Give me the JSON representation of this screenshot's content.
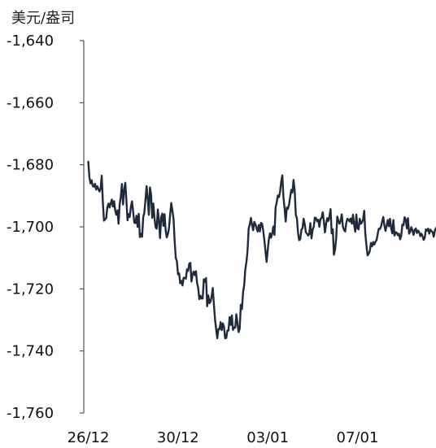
{
  "chart_data": {
    "type": "line",
    "ylabel": "美元/盎司",
    "ylim": [
      -1760,
      -1640
    ],
    "y_ticks": [
      -1640,
      -1660,
      -1680,
      -1700,
      -1720,
      -1740,
      -1760
    ],
    "y_tick_labels": [
      "-1,640",
      "-1,660",
      "-1,680",
      "-1,700",
      "-1,720",
      "-1,740",
      "-1,760"
    ],
    "x_tick_labels": [
      "26/12",
      "30/12",
      "03/01",
      "07/01"
    ],
    "x_tick_positions": [
      0,
      4,
      8,
      12
    ],
    "xlim": [
      -0.2,
      15.5
    ],
    "grid": false,
    "line_color": "#1f2a3c",
    "series": [
      {
        "x": [
          0.0,
          0.05,
          0.1,
          0.15,
          0.2,
          0.25,
          0.3,
          0.35,
          0.4,
          0.45,
          0.5,
          0.55,
          0.6,
          0.65,
          0.7,
          0.75,
          0.8,
          0.85,
          0.9,
          0.95,
          1.0,
          1.05,
          1.1,
          1.15,
          1.2,
          1.25,
          1.3,
          1.35,
          1.4,
          1.45,
          1.5,
          1.55,
          1.6,
          1.65,
          1.7,
          1.75,
          1.8,
          1.85,
          1.9,
          1.95,
          2.0,
          2.05,
          2.1,
          2.15,
          2.2,
          2.25,
          2.3,
          2.35,
          2.4,
          2.45,
          2.5,
          2.55,
          2.6,
          2.65,
          2.7,
          2.75,
          2.8,
          2.85,
          2.9,
          2.95,
          3.0,
          3.05,
          3.1,
          3.15,
          3.2,
          3.25,
          3.3,
          3.35,
          3.4,
          3.45,
          3.5,
          3.55,
          3.6,
          3.65,
          3.7,
          3.75,
          3.8,
          3.85,
          3.9,
          3.95,
          4.0,
          4.05,
          4.1,
          4.15,
          4.2,
          4.25,
          4.3,
          4.35,
          4.4,
          4.45,
          4.5,
          4.55,
          4.6,
          4.65,
          4.7,
          4.75,
          4.8,
          4.85,
          4.9,
          4.95,
          5.0,
          5.05,
          5.1,
          5.15,
          5.2,
          5.25,
          5.3,
          5.35,
          5.4,
          5.45,
          5.5,
          5.55,
          5.6,
          5.65,
          5.7,
          5.75,
          5.8,
          5.85,
          5.9,
          5.95,
          6.0,
          6.05,
          6.1,
          6.15,
          6.2,
          6.25,
          6.3,
          6.35,
          6.4,
          6.45,
          6.5,
          6.55,
          6.6,
          6.65,
          6.7,
          6.75,
          6.8,
          6.85,
          6.9,
          6.95,
          7.0,
          7.05,
          7.1,
          7.15,
          7.2,
          7.25,
          7.3,
          7.35,
          7.4,
          7.45,
          7.5,
          7.55,
          7.6,
          7.65,
          7.7,
          7.75,
          7.8,
          7.85,
          7.9,
          7.95,
          8.0,
          8.05,
          8.1,
          8.15,
          8.2,
          8.25,
          8.3,
          8.35,
          8.4,
          8.45,
          8.5,
          8.55,
          8.6,
          8.65,
          8.7,
          8.75,
          8.8,
          8.85,
          8.9,
          8.95,
          9.0,
          9.05,
          9.1,
          9.15,
          9.2,
          9.25,
          9.3,
          9.35,
          9.4,
          9.45,
          9.5,
          9.55,
          9.6,
          9.65,
          9.7,
          9.75,
          9.8,
          9.85,
          9.9,
          9.95,
          10.0,
          10.05,
          10.1,
          10.15,
          10.2,
          10.25,
          10.3,
          10.35,
          10.4,
          10.45,
          10.5,
          10.55,
          10.6,
          10.65,
          10.7,
          10.75,
          10.8,
          10.85,
          10.9,
          10.95,
          11.0,
          11.05,
          11.1,
          11.15,
          11.2,
          11.25,
          11.3,
          11.35,
          11.4,
          11.45,
          11.5,
          11.55,
          11.6,
          11.65,
          11.7,
          11.75,
          11.8,
          11.85,
          11.9,
          11.95,
          12.0,
          12.05,
          12.1,
          12.15,
          12.2,
          12.25,
          12.3,
          12.35,
          12.4,
          12.45,
          12.5,
          12.55,
          12.6,
          12.65,
          12.7,
          12.75,
          12.8,
          12.85,
          12.9,
          12.95,
          13.0,
          13.05,
          13.1,
          13.15,
          13.2,
          13.25,
          13.3,
          13.35,
          13.4,
          13.45,
          13.5,
          13.55,
          13.6,
          13.65,
          13.7,
          13.75,
          13.8,
          13.85,
          13.9,
          13.95,
          14.0,
          14.05,
          14.1,
          14.15,
          14.2,
          14.25,
          14.3,
          14.35,
          14.4,
          14.45,
          14.5,
          14.55,
          14.6,
          14.65,
          14.7,
          14.75,
          14.8,
          14.85,
          14.9,
          14.95,
          15.0,
          15.05,
          15.1,
          15.15,
          15.2,
          15.25,
          15.3,
          15.35,
          15.4,
          15.45,
          15.5
        ],
        "values": [
          -1679.0,
          -1684.0,
          -1686.0,
          -1685.0,
          -1686.8,
          -1687.1,
          -1686.1,
          -1688.0,
          -1686.9,
          -1687.8,
          -1688.6,
          -1687.6,
          -1683.5,
          -1692.0,
          -1698.0,
          -1697.6,
          -1697.2,
          -1693.7,
          -1692.5,
          -1693.8,
          -1692.4,
          -1691.2,
          -1693.5,
          -1691.7,
          -1694.7,
          -1696.1,
          -1694.7,
          -1699.0,
          -1692.8,
          -1690.2,
          -1686.2,
          -1692.8,
          -1688.3,
          -1685.8,
          -1691.4,
          -1697.9,
          -1695.9,
          -1696.8,
          -1693.5,
          -1691.8,
          -1695.1,
          -1698.6,
          -1698.8,
          -1696.4,
          -1700.0,
          -1695.8,
          -1703.3,
          -1702.2,
          -1703.2,
          -1696.8,
          -1695.4,
          -1691.3,
          -1686.9,
          -1690.9,
          -1696.1,
          -1687.3,
          -1689.6,
          -1697.1,
          -1692.5,
          -1697.1,
          -1700.1,
          -1700.6,
          -1694.4,
          -1697.9,
          -1703.6,
          -1696.9,
          -1695.7,
          -1699.7,
          -1695.9,
          -1701.1,
          -1703.4,
          -1702.3,
          -1700.3,
          -1696.0,
          -1692.3,
          -1694.8,
          -1697.3,
          -1704.5,
          -1710.0,
          -1711.1,
          -1715.3,
          -1715.0,
          -1718.2,
          -1717.4,
          -1718.9,
          -1716.4,
          -1716.5,
          -1716.7,
          -1713.7,
          -1714.2,
          -1711.9,
          -1711.6,
          -1717.6,
          -1715.3,
          -1714.4,
          -1715.6,
          -1714.3,
          -1718.1,
          -1719.7,
          -1723.3,
          -1722.2,
          -1723.1,
          -1723.1,
          -1716.9,
          -1717.7,
          -1716.5,
          -1725.6,
          -1722.1,
          -1724.6,
          -1724.1,
          -1722.4,
          -1719.7,
          -1725.0,
          -1729.8,
          -1733.0,
          -1735.9,
          -1732.9,
          -1733.0,
          -1730.7,
          -1733.3,
          -1731.1,
          -1732.2,
          -1735.9,
          -1735.8,
          -1733.4,
          -1733.4,
          -1729.1,
          -1731.6,
          -1728.5,
          -1733.2,
          -1732.4,
          -1732.5,
          -1728.2,
          -1731.0,
          -1733.9,
          -1732.8,
          -1725.1,
          -1726.5,
          -1721.1,
          -1718.8,
          -1713.7,
          -1711.3,
          -1707.7,
          -1700.5,
          -1699.2,
          -1697.1,
          -1699.4,
          -1701.1,
          -1698.4,
          -1699.1,
          -1700.4,
          -1701.5,
          -1699.4,
          -1701.5,
          -1698.7,
          -1699.1,
          -1701.3,
          -1704.4,
          -1708.0,
          -1711.3,
          -1707.4,
          -1704.0,
          -1702.1,
          -1703.5,
          -1702.1,
          -1699.9,
          -1702.6,
          -1693.8,
          -1692.1,
          -1689.9,
          -1690.4,
          -1688.7,
          -1685.4,
          -1683.4,
          -1690.4,
          -1694.0,
          -1698.3,
          -1693.8,
          -1694.2,
          -1692.8,
          -1690.4,
          -1688.1,
          -1688.9,
          -1684.9,
          -1688.1,
          -1696.1,
          -1697.2,
          -1701.9,
          -1704.3,
          -1703.9,
          -1701.0,
          -1700.4,
          -1697.4,
          -1699.2,
          -1701.8,
          -1702.2,
          -1702.8,
          -1702.3,
          -1698.8,
          -1703.7,
          -1701.0,
          -1700.0,
          -1697.0,
          -1697.2,
          -1698.2,
          -1697.7,
          -1700.0,
          -1697.5,
          -1697.1,
          -1695.3,
          -1698.1,
          -1701.8,
          -1699.1,
          -1697.2,
          -1698.1,
          -1696.7,
          -1694.3,
          -1702.1,
          -1700.8,
          -1709.0,
          -1707.3,
          -1703.7,
          -1696.7,
          -1698.0,
          -1699.0,
          -1698.1,
          -1696.0,
          -1699.9,
          -1701.0,
          -1701.5,
          -1698.8,
          -1697.4,
          -1697.6,
          -1698.3,
          -1697.3,
          -1699.0,
          -1696.1,
          -1699.2,
          -1701.6,
          -1696.0,
          -1700.5,
          -1700.8,
          -1697.4,
          -1699.0,
          -1698.6,
          -1697.6,
          -1694.8,
          -1702.2,
          -1706.0,
          -1709.2,
          -1708.6,
          -1707.8,
          -1705.2,
          -1706.3,
          -1704.9,
          -1705.7,
          -1704.8,
          -1704.3,
          -1702.4,
          -1700.6,
          -1700.7,
          -1699.9,
          -1698.3,
          -1696.8,
          -1699.6,
          -1701.3,
          -1699.6,
          -1697.8,
          -1699.8,
          -1697.4,
          -1700.4,
          -1702.1,
          -1697.8,
          -1702.8,
          -1701.7,
          -1701.9,
          -1702.7,
          -1702.2,
          -1704.0,
          -1702.9,
          -1699.3,
          -1699.5,
          -1696.9,
          -1697.6,
          -1700.5,
          -1697.2,
          -1702.2,
          -1701.6,
          -1700.1,
          -1701.1,
          -1702.6,
          -1701.0,
          -1700.5,
          -1702.0,
          -1701.2,
          -1701.7,
          -1703.0,
          -1702.2,
          -1703.0,
          -1704.2,
          -1703.5,
          -1700.8,
          -1701.2,
          -1700.6,
          -1702.2,
          -1700.9,
          -1701.4,
          -1701.7,
          -1703.2,
          -1701.2,
          -1700.4
        ]
      }
    ]
  }
}
